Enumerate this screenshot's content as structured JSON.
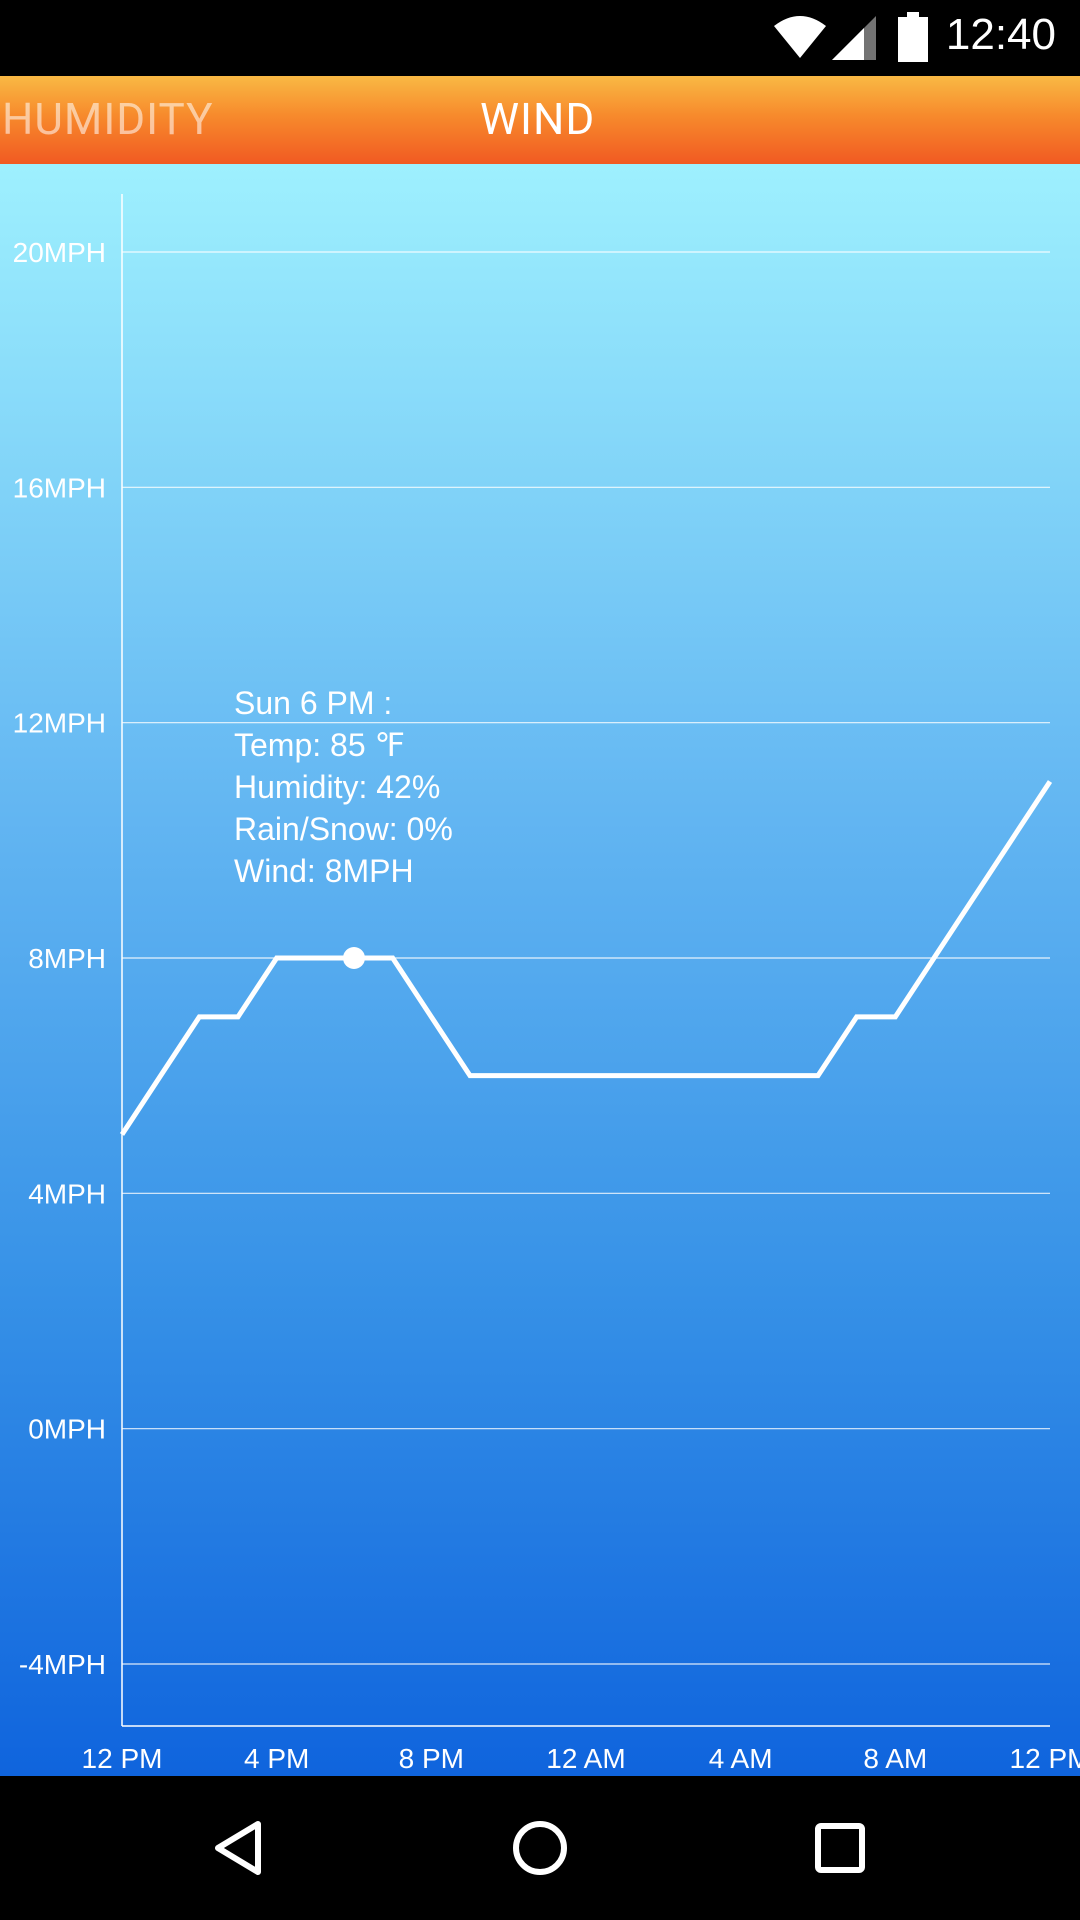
{
  "status_bar": {
    "time": "12:40",
    "icons": [
      "wifi-icon",
      "signal-icon",
      "battery-icon"
    ]
  },
  "tabs": [
    {
      "label": "HUMIDITY",
      "selected": false
    },
    {
      "label": "WIND",
      "selected": true
    }
  ],
  "tooltip": {
    "lines": [
      "Sun 6 PM :",
      "Temp: 85 ℉",
      "Humidity: 42%",
      "Rain/Snow: 0%",
      "Wind: 8MPH"
    ]
  },
  "chart_data": {
    "type": "line",
    "x": [
      "12 PM",
      "1 PM",
      "2 PM",
      "3 PM",
      "4 PM",
      "5 PM",
      "6 PM",
      "7 PM",
      "8 PM",
      "9 PM",
      "10 PM",
      "11 PM",
      "12 AM",
      "1 AM",
      "2 AM",
      "3 AM",
      "4 AM",
      "5 AM",
      "6 AM",
      "7 AM",
      "8 AM",
      "9 AM",
      "10 AM",
      "11 AM",
      "12 PM"
    ],
    "values": [
      5,
      6,
      7,
      7,
      8,
      8,
      8,
      8,
      7,
      6,
      6,
      6,
      6,
      6,
      6,
      6,
      6,
      6,
      6,
      7,
      7,
      8,
      9,
      10,
      11
    ],
    "x_tick_labels": [
      "12 PM",
      "4 PM",
      "8 PM",
      "12 AM",
      "4 AM",
      "8 AM",
      "12 PM"
    ],
    "y_tick_labels": [
      "20MPH",
      "16MPH",
      "12MPH",
      "8MPH",
      "4MPH",
      "0MPH",
      "-4MPH"
    ],
    "y_ticks": [
      20,
      16,
      12,
      8,
      4,
      0,
      -4
    ],
    "ylim": [
      -5,
      21
    ],
    "highlight_index": 6,
    "grid": true,
    "colors": {
      "line": "#ffffff",
      "grid": "#ffffff"
    }
  },
  "nav_bar": {
    "buttons": [
      "back-icon",
      "home-icon",
      "recents-icon"
    ]
  }
}
